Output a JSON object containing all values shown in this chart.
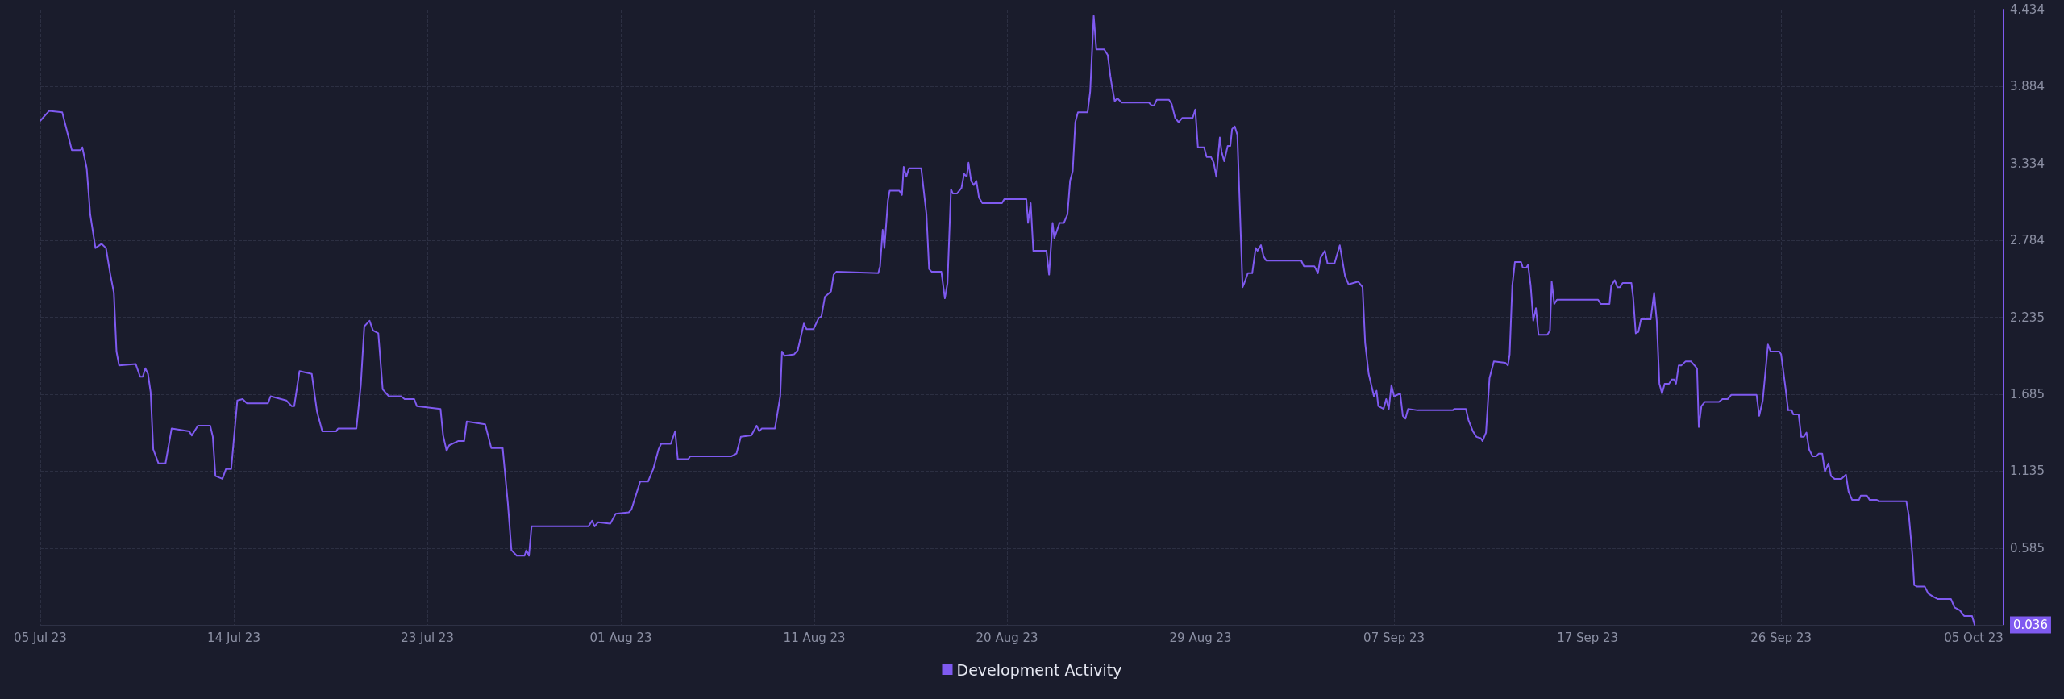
{
  "chart_data": {
    "type": "line",
    "legend": "bottom",
    "grid": true,
    "marker": "none",
    "line_style": "solid",
    "xlim": [
      "--07-05T08:00",
      "--10-06T18:00"
    ],
    "xticks": [
      {
        "value": "--07-05T08:00",
        "label": "05 Jul 23"
      },
      {
        "value": "--07-14T13:00",
        "label": "14 Jul 23"
      },
      {
        "value": "--07-23T18:00",
        "label": "23 Jul 23"
      },
      {
        "value": "--08-01T23:00",
        "label": "01 Aug 23"
      },
      {
        "value": "--08-11T04:00",
        "label": "11 Aug 23"
      },
      {
        "value": "--08-20T08:00",
        "label": "20 Aug 23"
      },
      {
        "value": "--08-29T13:00",
        "label": "29 Aug 23"
      },
      {
        "value": "--09-07T18:00",
        "label": "07 Sep 23"
      },
      {
        "value": "--09-16T23:00",
        "label": "17 Sep 23"
      },
      {
        "value": "--09-26T04:00",
        "label": "26 Sep 23"
      },
      {
        "value": "--10-05T08:00",
        "label": "05 Oct 23"
      }
    ],
    "ylim": [
      0.036,
      4.434
    ],
    "yticks": [
      0.036,
      0.585,
      1.135,
      1.685,
      2.235,
      2.784,
      3.334,
      3.884,
      4.434
    ],
    "series": [
      {
        "name": "Development Activity",
        "color": "#7f5af0",
        "x": [
          "--07-05T08:00",
          "--07-05T18:00",
          "--07-06T09:00",
          "--07-06T18:00",
          "--07-06T20:00",
          "--07-07T06:00",
          "--07-07T08:00",
          "--07-07T13:00",
          "--07-07T17:00",
          "--07-07T23:00",
          "--07-08T06:00",
          "--07-08T11:00",
          "--07-08T16:00",
          "--07-08T20:00",
          "--07-08T23:00",
          "--07-09T02:00",
          "--07-09T21:00",
          "--07-10T02:00",
          "--07-10T05:00",
          "--07-10T08:00",
          "--07-10T11:00",
          "--07-10T14:00",
          "--07-10T17:00",
          "--07-10T23:00",
          "--07-11T07:00",
          "--07-11T14:00",
          "--07-12T10:00",
          "--07-12T13:00",
          "--07-12T20:00",
          "--07-13T10:00",
          "--07-13T13:00",
          "--07-13T16:00",
          "--07-14T00:00",
          "--07-14T04:00",
          "--07-14T10:00",
          "--07-14T17:00",
          "--07-14T23:00",
          "--07-15T04:00",
          "--07-16T04:00",
          "--07-16T07:00",
          "--07-17T01:00",
          "--07-17T07:00",
          "--07-17T10:00",
          "--07-17T16:00",
          "--07-18T06:00",
          "--07-18T12:00",
          "--07-18T18:00",
          "--07-19T10:00",
          "--07-19T12:00",
          "--07-20T09:00",
          "--07-20T14:00",
          "--07-20T18:00",
          "--07-21T00:00",
          "--07-21T04:00",
          "--07-21T10:00",
          "--07-21T15:00",
          "--07-21T22:00",
          "--07-22T12:00",
          "--07-22T16:00",
          "--07-23T03:00",
          "--07-23T06:00",
          "--07-24T09:00",
          "--07-24T12:00",
          "--07-24T16:00",
          "--07-24T19:00",
          "--07-25T05:00",
          "--07-25T12:00",
          "--07-25T15:00",
          "--07-26T12:00",
          "--07-26T19:00",
          "--07-27T08:00",
          "--07-27T14:00",
          "--07-27T18:00",
          "--07-28T00:00",
          "--07-28T09:00",
          "--07-28T11:00",
          "--07-28T14:00",
          "--07-28T17:00",
          "--07-31T10:00",
          "--07-31T14:00",
          "--07-31T17:00",
          "--07-31T21:00",
          "--08-01T11:00",
          "--08-01T17:00",
          "--08-02T08:00",
          "--08-02T11:00",
          "--08-02T21:00",
          "--08-03T06:00",
          "--08-03T12:00",
          "--08-03T18:00",
          "--08-03T21:00",
          "--08-04T08:00",
          "--08-04T13:00",
          "--08-04T16:00",
          "--08-05T04:00",
          "--08-05T06:00",
          "--08-07T05:00",
          "--08-07T11:00",
          "--08-07T16:00",
          "--08-08T04:00",
          "--08-08T10:00",
          "--08-08T13:00",
          "--08-08T16:00",
          "--08-09T07:00",
          "--08-09T13:00",
          "--08-09T15:00",
          "--08-09T18:00",
          "--08-10T05:00",
          "--08-10T09:00",
          "--08-10T16:00",
          "--08-10T19:00",
          "--08-11T03:00",
          "--08-11T09:00",
          "--08-11T12:00",
          "--08-11T16:00",
          "--08-11T23:00",
          "--08-12T02:00",
          "--08-12T05:00",
          "--08-14T05:00",
          "--08-14T07:00",
          "--08-14T10:00",
          "--08-14T12:00",
          "--08-14T16:00",
          "--08-14T18:00",
          "--08-15T05:00",
          "--08-15T08:00",
          "--08-15T10:00",
          "--08-15T13:00",
          "--08-15T16:00",
          "--08-16T06:00",
          "--08-16T12:00",
          "--08-16T15:00",
          "--08-16T18:00",
          "--08-17T05:00",
          "--08-17T09:00",
          "--08-17T12:00",
          "--08-17T16:00",
          "--08-17T18:00",
          "--08-17T23:00",
          "--08-18T04:00",
          "--08-18T07:00",
          "--08-18T10:00",
          "--08-18T12:00",
          "--08-18T15:00",
          "--08-18T18:00",
          "--08-18T21:00",
          "--08-19T00:00",
          "--08-19T04:00",
          "--08-20T02:00",
          "--08-20T05:00",
          "--08-21T06:00",
          "--08-21T08:00",
          "--08-21T11:00",
          "--08-21T14:00",
          "--08-22T05:00",
          "--08-22T08:00",
          "--08-22T12:00",
          "--08-22T14:00",
          "--08-22T20:00",
          "--08-23T01:00",
          "--08-23T05:00",
          "--08-23T08:00",
          "--08-23T11:00",
          "--08-23T14:00",
          "--08-23T17:00",
          "--08-24T04:00",
          "--08-24T07:00",
          "--08-24T11:00",
          "--08-24T14:00",
          "--08-24T23:00",
          "--08-25T03:00",
          "--08-25T06:00",
          "--08-25T08:00",
          "--08-25T11:00",
          "--08-25T14:00",
          "--08-25T19:00",
          "--08-27T02:00",
          "--08-27T05:00",
          "--08-27T08:00",
          "--08-27T11:00",
          "--08-28T01:00",
          "--08-28T04:00",
          "--08-28T08:00",
          "--08-28T12:00",
          "--08-28T16:00",
          "--08-29T04:00",
          "--08-29T07:00",
          "--08-29T10:00",
          "--08-29T17:00",
          "--08-29T20:00",
          "--08-30T01:00",
          "--08-30T04:00",
          "--08-30T07:00",
          "--08-30T11:00",
          "--08-30T13:00",
          "--08-30T16:00",
          "--08-30T20:00",
          "--08-30T23:00",
          "--08-31T01:00",
          "--08-31T04:00",
          "--08-31T07:00",
          "--08-31T13:00",
          "--08-31T15:00",
          "--08-31T19:00",
          "--09-01T00:00",
          "--09-01T04:00",
          "--09-01T06:00",
          "--09-01T10:00",
          "--09-01T13:00",
          "--09-01T16:00",
          "--09-03T08:00",
          "--09-03T11:00",
          "--09-03T23:00",
          "--09-04T03:00",
          "--09-04T06:00",
          "--09-04T11:00",
          "--09-04T14:00",
          "--09-04T22:00",
          "--09-05T04:00",
          "--09-05T10:00",
          "--09-05T14:00",
          "--09-06T01:00",
          "--09-06T06:00",
          "--09-06T09:00",
          "--09-06T13:00",
          "--09-06T19:00",
          "--09-06T22:00",
          "--09-07T00:00",
          "--09-07T06:00",
          "--09-07T09:00",
          "--09-07T12:00",
          "--09-07T15:00",
          "--09-07T18:00",
          "--09-08T01:00",
          "--09-08T04:00",
          "--09-08T07:00",
          "--09-08T10:00",
          "--09-08T21:00",
          "--09-10T13:00",
          "--09-10T15:00",
          "--09-11T04:00",
          "--09-11T07:00",
          "--09-11T12:00",
          "--09-11T16:00",
          "--09-11T21:00",
          "--09-11T23:00",
          "--09-12T03:00",
          "--09-12T07:00",
          "--09-12T12:00",
          "--09-13T01:00",
          "--09-13T04:00",
          "--09-13T06:00",
          "--09-13T09:00",
          "--09-13T12:00",
          "--09-13T19:00",
          "--09-13T21:00",
          "--09-14T01:00",
          "--09-14T03:00",
          "--09-14T06:00",
          "--09-14T09:00",
          "--09-14T12:00",
          "--09-14T15:00",
          "--09-15T01:00",
          "--09-15T04:00",
          "--09-15T06:00",
          "--09-15T09:00",
          "--09-15T12:00",
          "--09-17T11:00",
          "--09-17T14:00",
          "--09-18T00:00",
          "--09-18T02:00",
          "--09-18T06:00",
          "--09-18T09:00",
          "--09-18T12:00",
          "--09-18T15:00",
          "--09-19T01:00",
          "--09-19T03:00",
          "--09-19T06:00",
          "--09-19T09:00",
          "--09-19T12:00",
          "--09-19T23:00",
          "--09-20T03:00",
          "--09-20T06:00",
          "--09-20T09:00",
          "--09-20T12:00",
          "--09-20T15:00",
          "--09-20T20:00",
          "--09-20T23:00",
          "--09-21T02:00",
          "--09-21T04:00",
          "--09-21T07:00",
          "--09-21T10:00",
          "--09-21T15:00",
          "--09-21T21:00",
          "--09-22T04:00",
          "--09-22T06:00",
          "--09-22T09:00",
          "--09-22T13:00",
          "--09-23T05:00",
          "--09-23T09:00",
          "--09-23T15:00",
          "--09-23T19:00",
          "--09-25T00:00",
          "--09-25T03:00",
          "--09-25T07:00",
          "--09-25T13:00",
          "--09-25T16:00",
          "--09-26T02:00",
          "--09-26T04:00",
          "--09-26T09:00",
          "--09-26T12:00",
          "--09-26T16:00",
          "--09-26T18:00",
          "--09-27T00:00",
          "--09-27T03:00",
          "--09-27T06:00",
          "--09-27T09:00",
          "--09-27T12:00",
          "--09-27T16:00",
          "--09-27T20:00",
          "--09-27T23:00",
          "--09-28T03:00",
          "--09-28T06:00",
          "--09-28T10:00",
          "--09-28T13:00",
          "--09-28T17:00",
          "--09-29T01:00",
          "--09-29T06:00",
          "--09-29T09:00",
          "--09-29T13:00",
          "--09-29T21:00",
          "--09-29T23:00",
          "--09-30T06:00",
          "--09-30T09:00",
          "--09-30T17:00",
          "--09-30T19:00",
          "--10-02T03:00",
          "--10-02T06:00",
          "--10-02T10:00",
          "--10-02T12:00",
          "--10-02T15:00",
          "--10-03T00:00",
          "--10-03T04:00",
          "--10-03T09:00",
          "--10-03T15:00",
          "--10-04T06:00",
          "--10-04T10:00",
          "--10-04T16:00",
          "--10-04T21:00",
          "--10-05T06:00",
          "--10-05T09:00"
        ],
        "values": [
          3.64,
          3.71,
          3.7,
          3.48,
          3.43,
          3.43,
          3.45,
          3.3,
          2.97,
          2.73,
          2.76,
          2.73,
          2.54,
          2.41,
          1.99,
          1.89,
          1.9,
          1.81,
          1.81,
          1.87,
          1.83,
          1.7,
          1.29,
          1.19,
          1.19,
          1.44,
          1.42,
          1.39,
          1.46,
          1.46,
          1.38,
          1.1,
          1.08,
          1.15,
          1.15,
          1.64,
          1.65,
          1.62,
          1.62,
          1.67,
          1.64,
          1.6,
          1.6,
          1.85,
          1.83,
          1.56,
          1.42,
          1.42,
          1.44,
          1.44,
          1.75,
          2.17,
          2.21,
          2.14,
          2.12,
          1.72,
          1.67,
          1.67,
          1.65,
          1.65,
          1.6,
          1.58,
          1.39,
          1.28,
          1.32,
          1.35,
          1.35,
          1.49,
          1.47,
          1.3,
          1.3,
          0.9,
          0.57,
          0.53,
          0.53,
          0.57,
          0.53,
          0.74,
          0.74,
          0.78,
          0.74,
          0.77,
          0.76,
          0.83,
          0.84,
          0.86,
          1.06,
          1.06,
          1.15,
          1.29,
          1.33,
          1.33,
          1.42,
          1.22,
          1.22,
          1.24,
          1.24,
          1.26,
          1.38,
          1.39,
          1.46,
          1.42,
          1.44,
          1.44,
          1.67,
          1.99,
          1.96,
          1.97,
          2.0,
          2.19,
          2.15,
          2.15,
          2.23,
          2.24,
          2.38,
          2.42,
          2.54,
          2.56,
          2.55,
          2.6,
          2.86,
          2.73,
          3.07,
          3.14,
          3.14,
          3.11,
          3.31,
          3.24,
          3.3,
          3.3,
          2.97,
          2.58,
          2.56,
          2.56,
          2.37,
          2.48,
          3.15,
          3.12,
          3.12,
          3.16,
          3.26,
          3.24,
          3.34,
          3.21,
          3.18,
          3.21,
          3.09,
          3.05,
          3.05,
          3.08,
          3.08,
          2.91,
          3.05,
          2.71,
          2.71,
          2.54,
          2.91,
          2.8,
          2.91,
          2.91,
          2.97,
          3.21,
          3.28,
          3.63,
          3.7,
          3.7,
          3.85,
          4.39,
          4.15,
          4.15,
          4.11,
          3.96,
          3.88,
          3.78,
          3.8,
          3.77,
          3.77,
          3.75,
          3.75,
          3.79,
          3.79,
          3.76,
          3.66,
          3.63,
          3.66,
          3.66,
          3.72,
          3.45,
          3.45,
          3.38,
          3.38,
          3.34,
          3.24,
          3.52,
          3.42,
          3.35,
          3.46,
          3.46,
          3.58,
          3.6,
          3.54,
          2.45,
          2.48,
          2.55,
          2.55,
          2.73,
          2.71,
          2.75,
          2.67,
          2.64,
          2.64,
          2.6,
          2.6,
          2.55,
          2.66,
          2.71,
          2.62,
          2.62,
          2.75,
          2.53,
          2.47,
          2.49,
          2.45,
          2.05,
          1.83,
          1.67,
          1.71,
          1.6,
          1.58,
          1.65,
          1.58,
          1.75,
          1.67,
          1.69,
          1.53,
          1.51,
          1.58,
          1.57,
          1.57,
          1.58,
          1.58,
          1.5,
          1.42,
          1.38,
          1.37,
          1.35,
          1.41,
          1.8,
          1.92,
          1.91,
          1.89,
          1.97,
          2.46,
          2.63,
          2.63,
          2.59,
          2.59,
          2.61,
          2.46,
          2.21,
          2.3,
          2.11,
          2.11,
          2.14,
          2.49,
          2.33,
          2.36,
          2.36,
          2.33,
          2.33,
          2.46,
          2.5,
          2.45,
          2.45,
          2.48,
          2.48,
          2.38,
          2.12,
          2.13,
          2.22,
          2.22,
          2.41,
          2.21,
          1.76,
          1.69,
          1.76,
          1.76,
          1.79,
          1.79,
          1.76,
          1.89,
          1.89,
          1.92,
          1.92,
          1.87,
          1.45,
          1.6,
          1.63,
          1.63,
          1.65,
          1.65,
          1.68,
          1.68,
          1.53,
          1.64,
          2.04,
          1.99,
          1.99,
          1.97,
          1.73,
          1.57,
          1.57,
          1.54,
          1.54,
          1.38,
          1.38,
          1.41,
          1.29,
          1.24,
          1.24,
          1.26,
          1.26,
          1.13,
          1.19,
          1.1,
          1.08,
          1.08,
          1.11,
          0.99,
          0.93,
          0.93,
          0.96,
          0.96,
          0.93,
          0.93,
          0.92,
          0.92,
          0.81,
          0.53,
          0.32,
          0.31,
          0.31,
          0.26,
          0.24,
          0.22,
          0.22,
          0.16,
          0.14,
          0.1,
          0.1,
          0.036
        ]
      }
    ]
  }
}
